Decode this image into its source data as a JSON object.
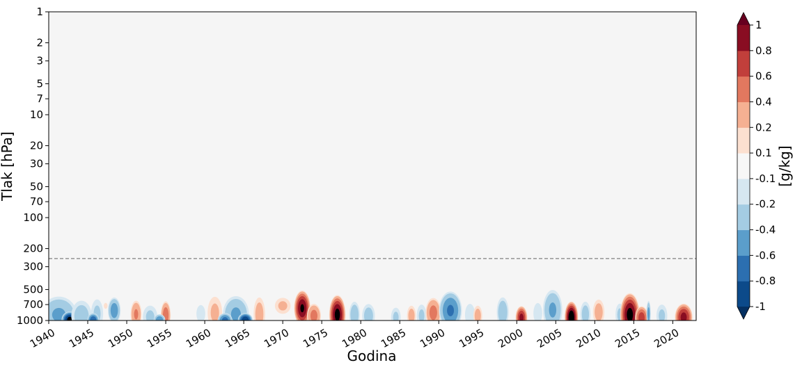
{
  "chart_data": {
    "type": "heatmap",
    "subtype": "filled-contour",
    "xlabel": "Godina",
    "ylabel": "Tlak [hPa]",
    "x_range": [
      1940,
      2023
    ],
    "x_ticks": [
      1940,
      1945,
      1950,
      1955,
      1960,
      1965,
      1970,
      1975,
      1980,
      1985,
      1990,
      1995,
      2000,
      2005,
      2010,
      2015,
      2020
    ],
    "y_scale": "log",
    "y_inverted": true,
    "y_range": [
      1,
      1000
    ],
    "y_ticks": [
      1,
      2,
      3,
      5,
      7,
      10,
      20,
      30,
      50,
      70,
      100,
      200,
      300,
      500,
      700,
      1000
    ],
    "reference_line": {
      "pressure_hPa": 250,
      "style": "dashed",
      "color": "#808080"
    },
    "background_color": "#f5f5f5",
    "colorbar": {
      "label": "[g/kg]",
      "levels": [
        "-1",
        "-0.8",
        "-0.6",
        "-0.4",
        "-0.2",
        "-0.1",
        "0.1",
        "0.2",
        "0.4",
        "0.6",
        "0.8",
        "1"
      ],
      "colors": [
        "#0c4a8a",
        "#2c6fb0",
        "#5b9ecb",
        "#a4cce3",
        "#d6e7f1",
        "#f7f7f7",
        "#fce0d0",
        "#f5b092",
        "#e2785f",
        "#c13f3b",
        "#890d22"
      ],
      "under_color": "#053061",
      "over_color": "#67001f",
      "extend": "both"
    },
    "anomalies": [
      {
        "year": 1940.6,
        "p": 985,
        "v": -1.2,
        "w": 1.4,
        "d": 0.07
      },
      {
        "year": 1941.3,
        "p": 880,
        "v": -0.45,
        "w": 2.6,
        "d": 0.2
      },
      {
        "year": 1942.7,
        "p": 975,
        "v": -1.1,
        "w": 1.1,
        "d": 0.08
      },
      {
        "year": 1944.2,
        "p": 900,
        "v": -0.3,
        "w": 1.6,
        "d": 0.18
      },
      {
        "year": 1946.2,
        "p": 860,
        "v": -0.25,
        "w": 1.0,
        "d": 0.18
      },
      {
        "year": 1945.7,
        "p": 985,
        "v": -0.8,
        "w": 0.8,
        "d": 0.07
      },
      {
        "year": 1947.3,
        "p": 720,
        "v": 0.13,
        "w": 0.5,
        "d": 0.06
      },
      {
        "year": 1948.4,
        "p": 800,
        "v": -0.55,
        "w": 0.9,
        "d": 0.14
      },
      {
        "year": 1951.2,
        "p": 870,
        "v": 0.45,
        "w": 0.8,
        "d": 0.15
      },
      {
        "year": 1953.0,
        "p": 920,
        "v": -0.25,
        "w": 1.2,
        "d": 0.14
      },
      {
        "year": 1955.0,
        "p": 890,
        "v": 0.55,
        "w": 0.7,
        "d": 0.15
      },
      {
        "year": 1954.2,
        "p": 985,
        "v": -0.6,
        "w": 0.8,
        "d": 0.06
      },
      {
        "year": 1959.5,
        "p": 860,
        "v": -0.2,
        "w": 0.8,
        "d": 0.12
      },
      {
        "year": 1961.3,
        "p": 840,
        "v": 0.25,
        "w": 1.2,
        "d": 0.2
      },
      {
        "year": 1964.0,
        "p": 870,
        "v": -0.45,
        "w": 1.9,
        "d": 0.2
      },
      {
        "year": 1962.6,
        "p": 985,
        "v": -0.7,
        "w": 1.0,
        "d": 0.07
      },
      {
        "year": 1965.2,
        "p": 985,
        "v": -1.0,
        "w": 1.0,
        "d": 0.07
      },
      {
        "year": 1967.0,
        "p": 870,
        "v": 0.3,
        "w": 0.9,
        "d": 0.2
      },
      {
        "year": 1970.0,
        "p": 720,
        "v": 0.25,
        "w": 1.3,
        "d": 0.1
      },
      {
        "year": 1972.5,
        "p": 760,
        "v": 1.05,
        "w": 1.1,
        "d": 0.18
      },
      {
        "year": 1974.0,
        "p": 900,
        "v": 0.5,
        "w": 1.0,
        "d": 0.13
      },
      {
        "year": 1977.0,
        "p": 880,
        "v": 1.1,
        "w": 1.1,
        "d": 0.2
      },
      {
        "year": 1979.2,
        "p": 880,
        "v": -0.35,
        "w": 0.8,
        "d": 0.15
      },
      {
        "year": 1981.0,
        "p": 900,
        "v": -0.3,
        "w": 1.0,
        "d": 0.14
      },
      {
        "year": 1984.5,
        "p": 930,
        "v": -0.25,
        "w": 0.8,
        "d": 0.12
      },
      {
        "year": 1986.5,
        "p": 900,
        "v": 0.3,
        "w": 0.7,
        "d": 0.12
      },
      {
        "year": 1987.8,
        "p": 900,
        "v": -0.25,
        "w": 0.8,
        "d": 0.14
      },
      {
        "year": 1989.3,
        "p": 840,
        "v": 0.5,
        "w": 1.1,
        "d": 0.16
      },
      {
        "year": 1991.5,
        "p": 800,
        "v": -0.65,
        "w": 1.6,
        "d": 0.2
      },
      {
        "year": 1994.0,
        "p": 880,
        "v": -0.2,
        "w": 0.9,
        "d": 0.15
      },
      {
        "year": 1995.0,
        "p": 900,
        "v": 0.3,
        "w": 0.7,
        "d": 0.12
      },
      {
        "year": 1998.2,
        "p": 830,
        "v": -0.35,
        "w": 0.9,
        "d": 0.17
      },
      {
        "year": 2000.6,
        "p": 940,
        "v": 0.9,
        "w": 0.8,
        "d": 0.12
      },
      {
        "year": 2002.7,
        "p": 850,
        "v": -0.2,
        "w": 0.8,
        "d": 0.14
      },
      {
        "year": 2004.6,
        "p": 790,
        "v": -0.45,
        "w": 1.4,
        "d": 0.22
      },
      {
        "year": 2007.0,
        "p": 930,
        "v": 1.2,
        "w": 0.9,
        "d": 0.16
      },
      {
        "year": 2008.8,
        "p": 870,
        "v": -0.3,
        "w": 0.8,
        "d": 0.15
      },
      {
        "year": 2010.5,
        "p": 830,
        "v": 0.3,
        "w": 0.9,
        "d": 0.15
      },
      {
        "year": 2013.2,
        "p": 880,
        "v": -0.25,
        "w": 0.7,
        "d": 0.14
      },
      {
        "year": 2014.5,
        "p": 880,
        "v": 1.1,
        "w": 1.3,
        "d": 0.22
      },
      {
        "year": 2016.0,
        "p": 940,
        "v": 0.75,
        "w": 0.9,
        "d": 0.12
      },
      {
        "year": 2016.9,
        "p": 860,
        "v": -0.5,
        "w": 0.3,
        "d": 0.14
      },
      {
        "year": 2018.6,
        "p": 900,
        "v": -0.25,
        "w": 0.9,
        "d": 0.14
      },
      {
        "year": 2021.4,
        "p": 930,
        "v": 0.9,
        "w": 1.2,
        "d": 0.14
      }
    ]
  }
}
